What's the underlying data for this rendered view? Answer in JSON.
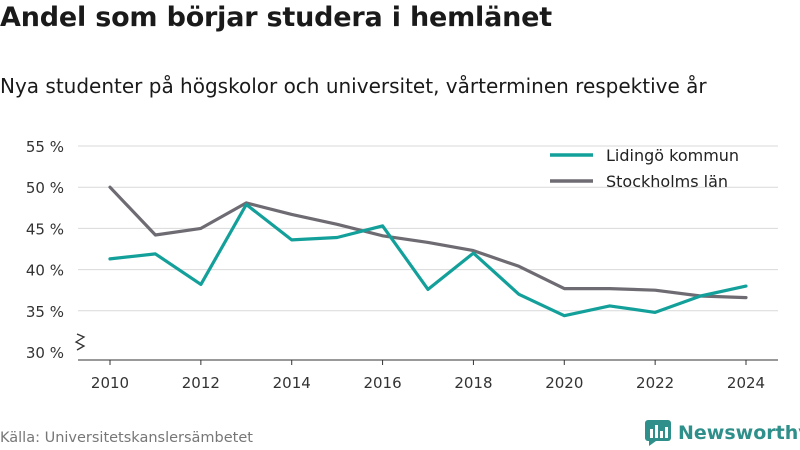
{
  "title": "Andel som börjar studera i hemlänet",
  "subtitle": "Nya studenter på högskolor och universitet, vårterminen respektive år",
  "source": "Källa: Universitetskanslersämbetet",
  "brand": {
    "name": "Newsworthy",
    "color": "#2f8f8a"
  },
  "chart_data": {
    "type": "line",
    "x": [
      2010,
      2011,
      2012,
      2013,
      2014,
      2015,
      2016,
      2017,
      2018,
      2019,
      2020,
      2021,
      2022,
      2023,
      2024
    ],
    "series": [
      {
        "name": "Lidingö kommun",
        "color": "#14a09a",
        "values": [
          41.3,
          41.9,
          38.2,
          47.9,
          43.6,
          43.9,
          45.3,
          37.6,
          42.0,
          37.0,
          34.4,
          35.6,
          34.8,
          36.8,
          38.0
        ]
      },
      {
        "name": "Stockholms län",
        "color": "#6e6c72",
        "values": [
          50.0,
          44.2,
          45.0,
          48.1,
          46.7,
          45.5,
          44.1,
          43.3,
          42.3,
          40.4,
          37.7,
          37.7,
          37.5,
          36.8,
          36.6
        ]
      }
    ],
    "ylim": [
      30,
      55
    ],
    "yticks": [
      30,
      35,
      40,
      45,
      50,
      55
    ],
    "ytick_labels": [
      "30 %",
      "35 %",
      "40 %",
      "45 %",
      "50 %",
      "55 %"
    ],
    "xticks": [
      2010,
      2012,
      2014,
      2016,
      2018,
      2020,
      2022,
      2024
    ],
    "xtick_labels": [
      "2010",
      "2012",
      "2014",
      "2016",
      "2018",
      "2020",
      "2022",
      "2024"
    ],
    "grid": true,
    "axis_break": true,
    "legend": "top-right",
    "xlabel": "",
    "ylabel": ""
  }
}
